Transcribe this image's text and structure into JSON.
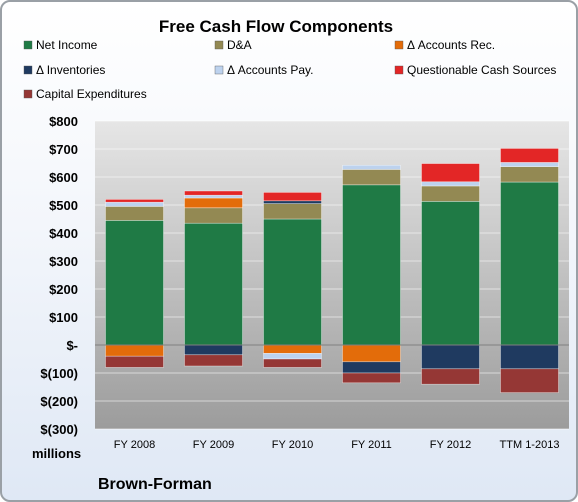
{
  "chart_data": {
    "type": "bar",
    "stacked": true,
    "title": "Free Cash Flow Components",
    "categories": [
      "FY 2008",
      "FY 2009",
      "FY 2010",
      "FY 2011",
      "FY 2012",
      "TTM 1-2013"
    ],
    "ylim": [
      -300,
      800
    ],
    "yticks": [
      -300,
      -200,
      -100,
      0,
      100,
      200,
      300,
      400,
      500,
      600,
      700,
      800
    ],
    "ytick_labels": [
      "$(300)",
      "$(200)",
      "$(100)",
      "$-",
      "$100",
      "$200",
      "$300",
      "$400",
      "$500",
      "$600",
      "$700",
      "$800"
    ],
    "units_label": "millions",
    "company": "Brown-Forman",
    "grid": true,
    "legend_position": "top",
    "series": [
      {
        "name": "Net Income",
        "color": "#1f7a45",
        "values": [
          445,
          435,
          450,
          572,
          513,
          582
        ]
      },
      {
        "name": "D&A",
        "color": "#938953",
        "values": [
          50,
          55,
          55,
          55,
          55,
          55
        ]
      },
      {
        "name": "Δ Accounts Rec.",
        "color": "#e36c0a",
        "values": [
          -40,
          35,
          -30,
          -60,
          0,
          0
        ]
      },
      {
        "name": "Δ Inventories",
        "color": "#1f3a60",
        "values": [
          0,
          -35,
          10,
          -40,
          -85,
          -85
        ]
      },
      {
        "name": "Δ Accounts Pay.",
        "color": "#bdd2ee",
        "values": [
          15,
          10,
          -20,
          15,
          15,
          15
        ]
      },
      {
        "name": "Questionable Cash Sources",
        "color": "#e32626",
        "values": [
          10,
          15,
          30,
          0,
          65,
          50
        ]
      },
      {
        "name": "Capital Expenditures",
        "color": "#953735",
        "values": [
          -40,
          -40,
          -30,
          -35,
          -55,
          -85
        ]
      }
    ]
  }
}
